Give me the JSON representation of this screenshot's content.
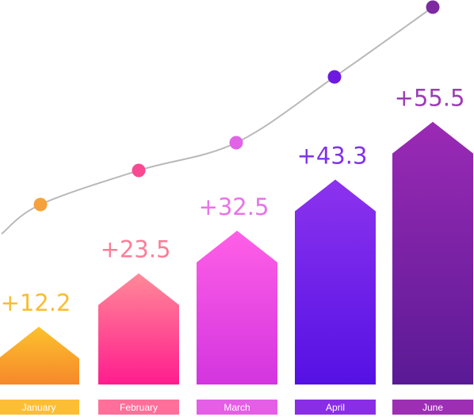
{
  "chart_data": {
    "type": "bar",
    "title": "",
    "xlabel": "",
    "ylabel": "",
    "categories": [
      "January",
      "February",
      "March",
      "April",
      "June"
    ],
    "series": [
      {
        "values": [
          12.2,
          23.5,
          32.5,
          43.3,
          55.5
        ]
      }
    ],
    "value_labels": [
      "+12.2",
      "+23.5",
      "+32.5",
      "+43.3",
      "+55.5"
    ],
    "trend_line": true,
    "legend": "none",
    "grid": false,
    "colors": {
      "bar_top": [
        "#fcc22d",
        "#ff8a98",
        "#ff5fe6",
        "#8c33ee",
        "#9b2ab5"
      ],
      "bar_bottom": [
        "#f6882a",
        "#ff1c8e",
        "#d335df",
        "#5511e4",
        "#5a1a95"
      ],
      "label_text": [
        "#f9bd33",
        "#fc7d97",
        "#e873e9",
        "#8033e6",
        "#9d3bb5"
      ],
      "category_bar": [
        "#fcbe34",
        "#ff6f9a",
        "#e55ee6",
        "#8a2de6",
        "#9d2fb5"
      ],
      "dot": [
        "#f5a23c",
        "#f84a93",
        "#e064e6",
        "#6d19e0",
        "#7d2aa2"
      ],
      "trend_line": "#b9b9b9"
    }
  }
}
